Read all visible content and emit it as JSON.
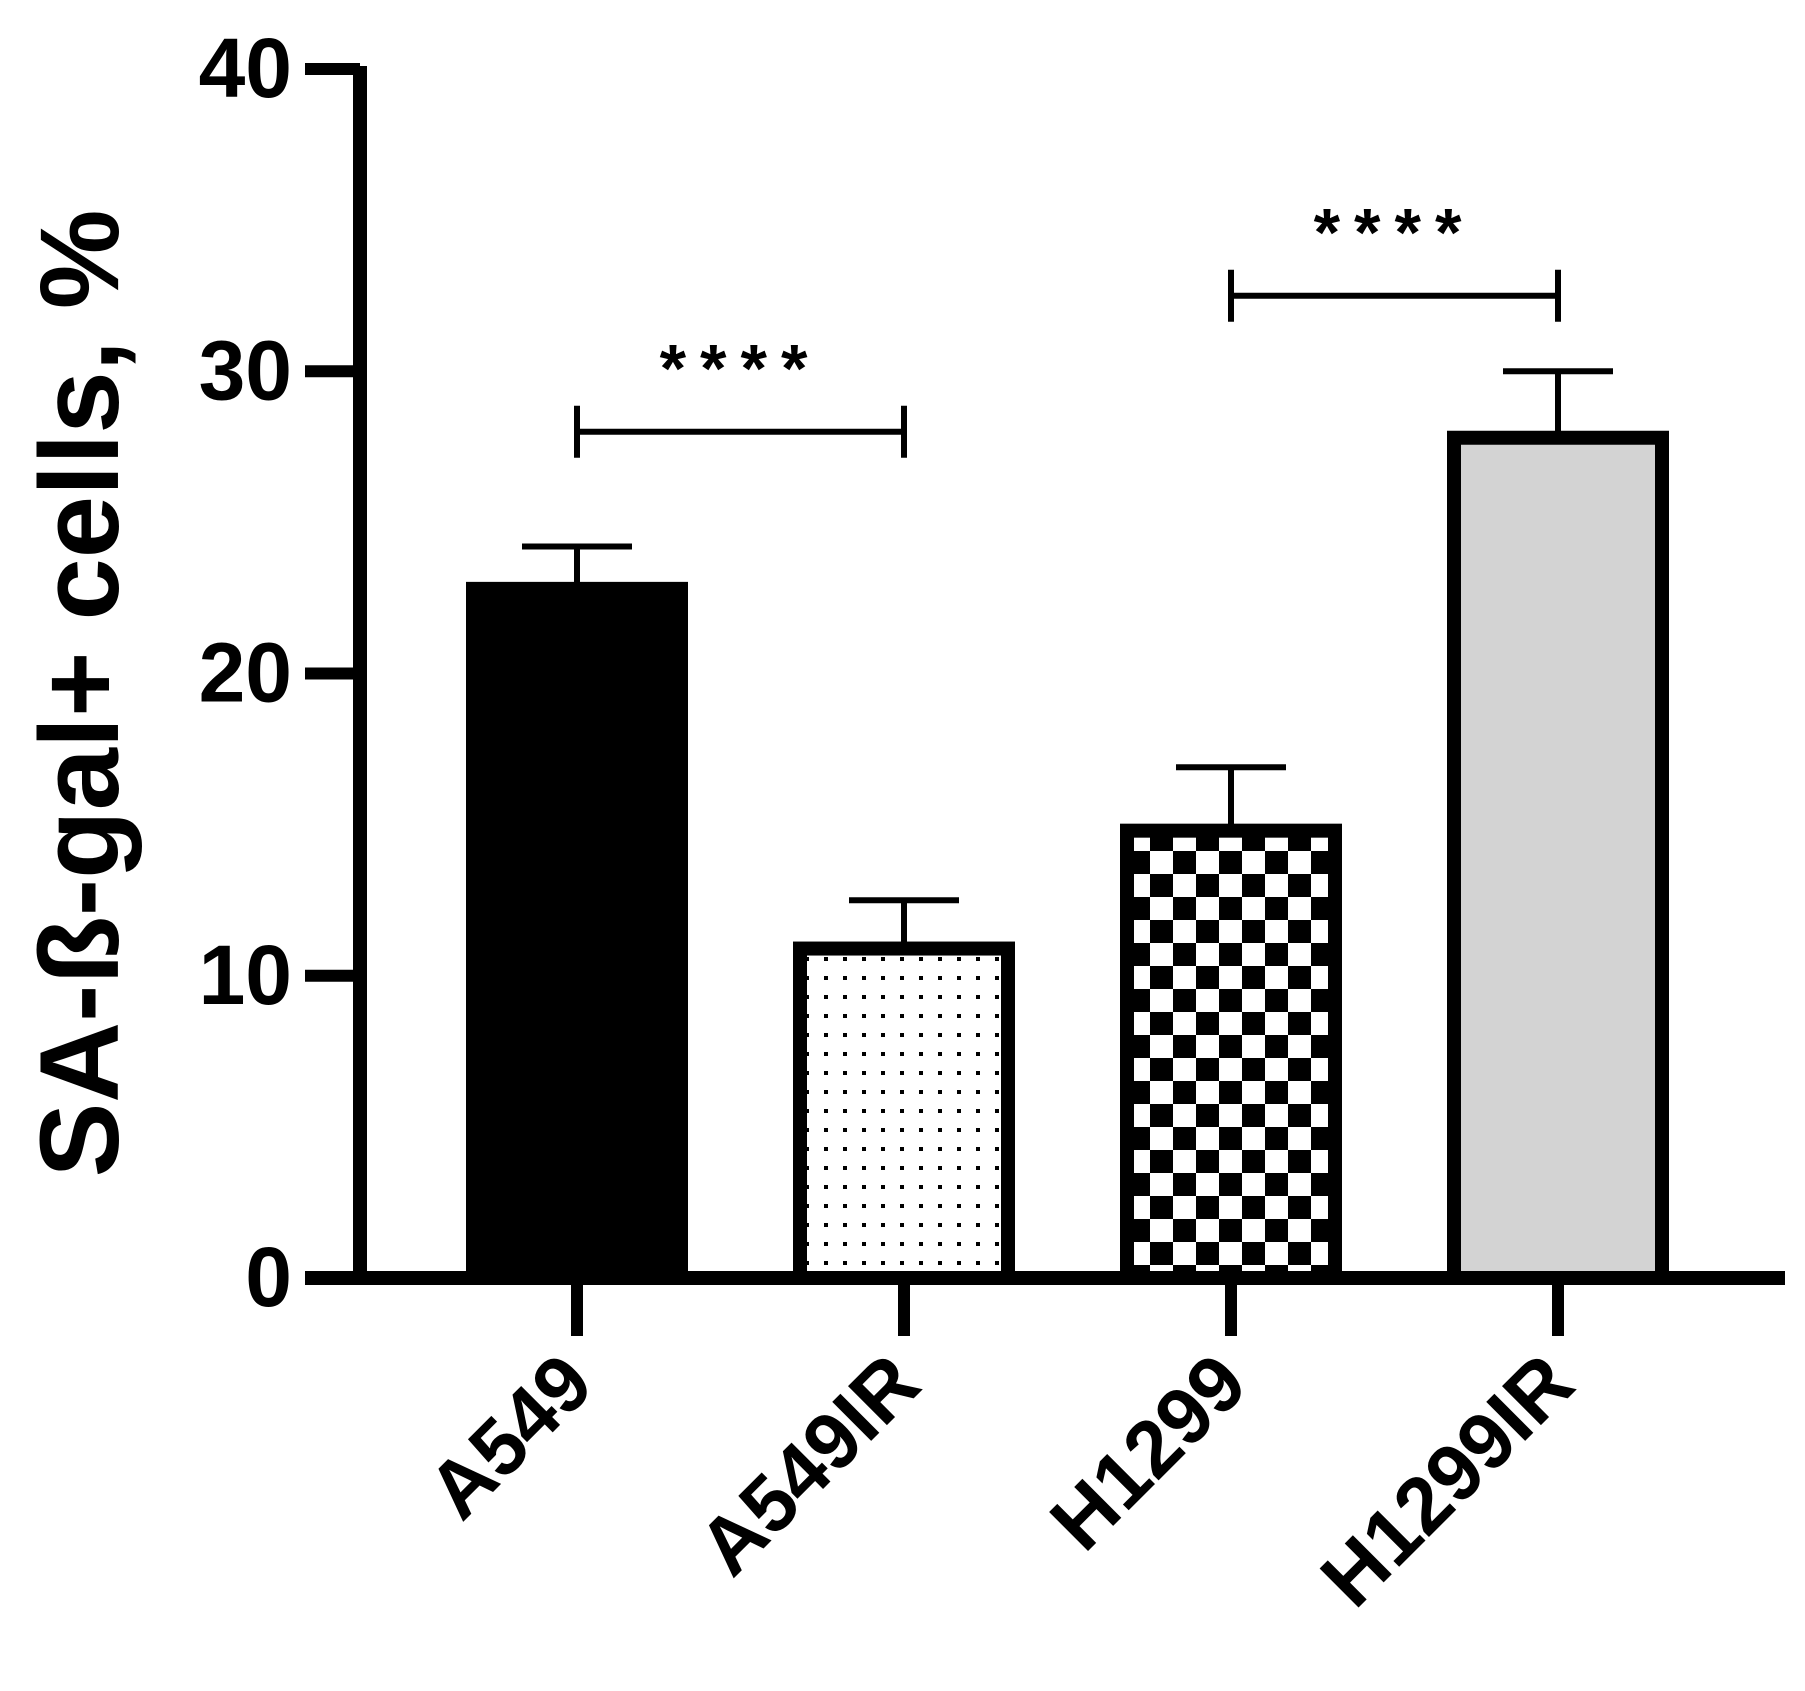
{
  "chart_data": {
    "type": "bar",
    "title": "",
    "xlabel": "",
    "ylabel": "SA-ß-gal+ cells, %",
    "ylim": [
      0,
      40
    ],
    "yticks": [
      0,
      10,
      20,
      30,
      40
    ],
    "grid": false,
    "legend": "none",
    "categories": [
      "A549",
      "A549IR",
      "H1299",
      "H1299IR"
    ],
    "values": [
      22.8,
      10.9,
      14.8,
      27.8
    ],
    "error_upper": [
      24.2,
      12.5,
      16.9,
      30.0
    ],
    "bar_styles": [
      {
        "fill": "solid",
        "color": "#000000"
      },
      {
        "fill": "dots",
        "color": "#ffffff"
      },
      {
        "fill": "checker",
        "color": "#ffffff"
      },
      {
        "fill": "solid",
        "color": "#d3d3d3"
      }
    ],
    "annotations": [
      {
        "from": "A549",
        "to": "A549IR",
        "y": 28.0,
        "label": "****"
      },
      {
        "from": "H1299",
        "to": "H1299IR",
        "y": 32.5,
        "label": "****"
      }
    ]
  }
}
